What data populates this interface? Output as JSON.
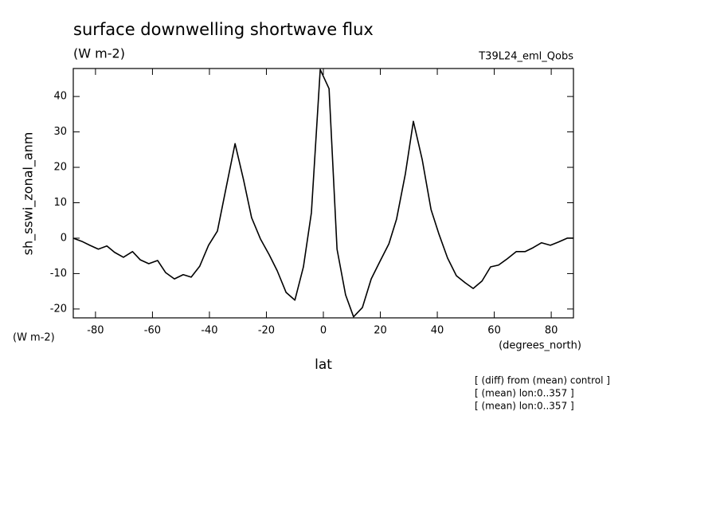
{
  "chart_data": {
    "type": "line",
    "title": "surface downwelling shortwave flux",
    "subtitle": "(W m-2)",
    "dataset": "T39L24_eml_Qobs",
    "y_label": "sh_sswi_zonal_anm",
    "y_units": "(W m-2)",
    "x_label": "lat",
    "x_units": "(degrees_north)",
    "notes": [
      "[ (diff) from (mean) control ]",
      "[ (mean) lon:0..357 ]",
      "[ (mean) lon:0..357 ]"
    ],
    "x": [
      -87.8,
      -84.8,
      -82,
      -79,
      -76,
      -73.3,
      -70.2,
      -67,
      -64.3,
      -61.3,
      -58.2,
      -55.4,
      -52.3,
      -49.2,
      -46.4,
      -43.4,
      -40.3,
      -37.2,
      -34.1,
      -31,
      -28,
      -25.2,
      -22.1,
      -19,
      -16.2,
      -13.1,
      -10,
      -7,
      -4.2,
      -1.1,
      2,
      4.8,
      7.8,
      10.6,
      13.7,
      16.8,
      19.9,
      23,
      25.7,
      28.8,
      31.6,
      34.7,
      37.8,
      40.6,
      43.6,
      46.7,
      49.8,
      52.6,
      55.7,
      58.7,
      61.5,
      64.6,
      67.7,
      70.8,
      73.6,
      76.6,
      79.7,
      82.5,
      85.6,
      87.8
    ],
    "series": [
      {
        "color": "#000000",
        "values": [
          0,
          -0.9,
          -2,
          -3.1,
          -2.2,
          -4,
          -5.4,
          -3.8,
          -6.1,
          -7.2,
          -6.3,
          -9.7,
          -11.5,
          -10.3,
          -11,
          -7.9,
          -2,
          2,
          14.4,
          26.7,
          16.4,
          5.8,
          -0.2,
          -4.7,
          -9.2,
          -15.3,
          -17.5,
          -8.1,
          7.2,
          47.6,
          42.2,
          -3.1,
          -16,
          -22.2,
          -19.6,
          -11.5,
          -6.5,
          -1.6,
          5.4,
          18.2,
          33,
          22.2,
          8.1,
          1.1,
          -5.6,
          -10.6,
          -12.6,
          -14.2,
          -12.1,
          -8.1,
          -7.6,
          -5.8,
          -3.8,
          -3.8,
          -2.7,
          -1.3,
          -2,
          -1.1,
          0,
          0
        ]
      }
    ],
    "xlim": [
      -87.8,
      87.8
    ],
    "xticks": [
      -80,
      -60,
      -40,
      -20,
      0,
      20,
      40,
      60,
      80
    ],
    "ylim": [
      -22.5,
      47.9
    ],
    "yticks": [
      -20,
      -10,
      0,
      10,
      20,
      30,
      40
    ]
  }
}
